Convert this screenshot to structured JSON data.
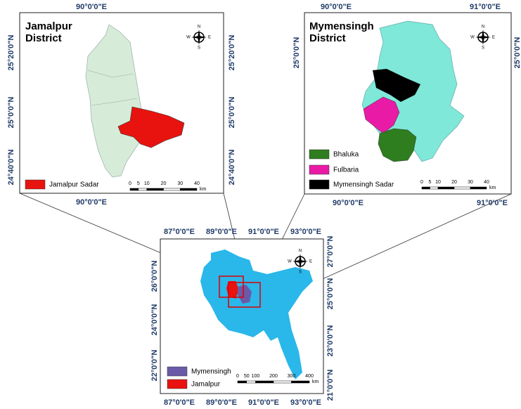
{
  "panels": [
    {
      "title": [
        "Jamalpur",
        "District"
      ],
      "top_labels": [
        "90°0'0\"E"
      ],
      "bottom_labels": [
        "90°0'0\"E"
      ],
      "left_labels": [
        "25°20'0\"N",
        "25°0'0\"N",
        "24°40'0\"N"
      ],
      "right_labels": [
        "25°20'0\"N",
        "25°0'0\"N",
        "24°40'0\"N"
      ],
      "compass": [
        "N",
        "W",
        "E",
        "S"
      ],
      "legend": [
        {
          "label": "Jamalpur Sadar"
        }
      ],
      "scale": [
        "0",
        "5",
        "10",
        "20",
        "30",
        "40"
      ],
      "scale_unit": "km"
    },
    {
      "title": [
        "Mymensingh",
        "District"
      ],
      "top_labels": [
        "90°0'0\"E",
        "91°0'0\"E"
      ],
      "bottom_labels": [
        "90°0'0\"E",
        "91°0'0\"E"
      ],
      "left_labels": [
        "25°0'0\"N"
      ],
      "right_labels": [
        "25°0'0\"N"
      ],
      "compass": [
        "N",
        "W",
        "E",
        "S"
      ],
      "legend": [
        {
          "label": "Bhaluka"
        },
        {
          "label": "Fulbaria"
        },
        {
          "label": "Mymensingh Sadar"
        }
      ],
      "scale": [
        "0",
        "5",
        "10",
        "20",
        "30",
        "40"
      ],
      "scale_unit": "km"
    },
    {
      "top_labels": [
        "87°0'0\"E",
        "89°0'0\"E",
        "91°0'0\"E",
        "93°0'0\"E"
      ],
      "bottom_labels": [
        "87°0'0\"E",
        "89°0'0\"E",
        "91°0'0\"E",
        "93°0'0\"E"
      ],
      "left_labels": [
        "26°0'0\"N",
        "24°0'0\"N",
        "22°0'0\"N"
      ],
      "right_labels": [
        "27°0'0\"N",
        "25°0'0\"N",
        "23°0'0\"N",
        "21°0'0\"N"
      ],
      "compass": [
        "N",
        "W",
        "E",
        "S"
      ],
      "legend": [
        {
          "label": "Mymensingh"
        },
        {
          "label": "Jamalpur"
        }
      ],
      "scale": [
        "0",
        "50",
        "100",
        "200",
        "300",
        "400"
      ],
      "scale_unit": "km"
    }
  ]
}
